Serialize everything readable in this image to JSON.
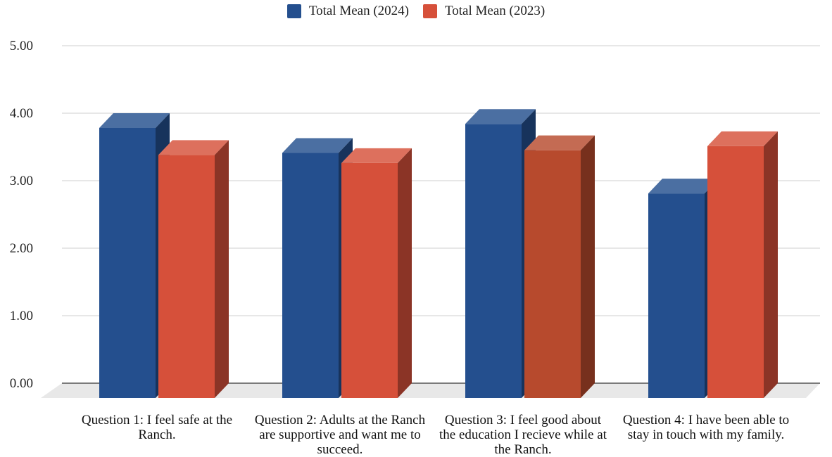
{
  "chart_data": {
    "type": "bar",
    "title": "",
    "xlabel": "",
    "ylabel": "",
    "ylim": [
      0,
      5
    ],
    "yticks": [
      "0.00",
      "1.00",
      "2.00",
      "3.00",
      "4.00",
      "5.00"
    ],
    "grid": true,
    "three_d": true,
    "legend_position": "top-center",
    "categories": [
      "Question 1: I feel safe at the Ranch.",
      "Question 2: Adults at the Ranch are supportive and want me to succeed.",
      "Question 3: I feel good about the education I recieve while at the Ranch.",
      "Question 4: I have been able to stay in touch with my family."
    ],
    "series": [
      {
        "name": "Total Mean (2024)",
        "color": "#244F8E",
        "values": [
          4.0,
          3.63,
          4.06,
          3.03
        ],
        "highlight_colors": [
          null,
          null,
          null,
          null
        ]
      },
      {
        "name": "Total Mean (2023)",
        "color": "#D6503A",
        "values": [
          3.6,
          3.48,
          3.67,
          3.73
        ],
        "highlight_colors": [
          null,
          null,
          "#B74A2D",
          null
        ]
      }
    ]
  }
}
